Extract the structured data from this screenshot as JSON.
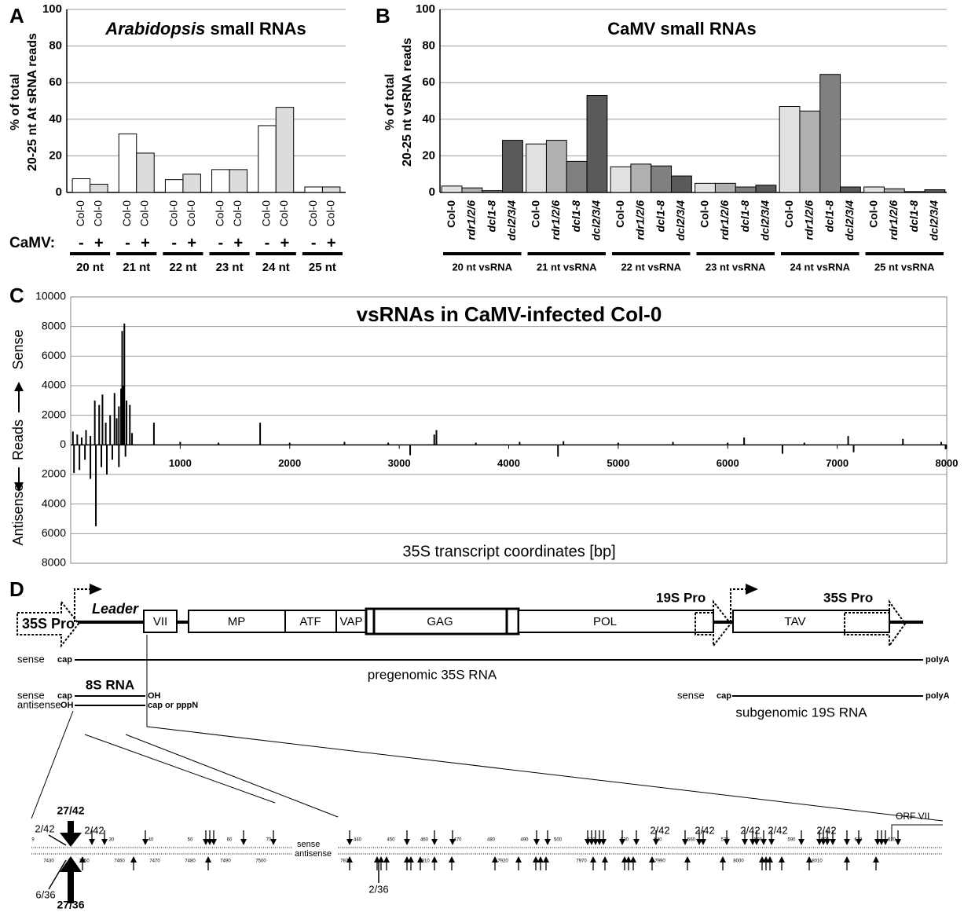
{
  "chart_data": [
    {
      "type": "bar",
      "panel": "A",
      "title_parts": [
        {
          "text": "Arabidopsis",
          "italic": true
        },
        {
          "text": " small RNAs",
          "italic": false
        }
      ],
      "ylabel": [
        "% of total",
        "20-25 nt At sRNA reads"
      ],
      "camv_label": "CaMV:",
      "bar_label": "Col-0",
      "categories": [
        "20 nt",
        "21 nt",
        "22 nt",
        "23 nt",
        "24 nt",
        "25 nt"
      ],
      "series": [
        {
          "name": "-",
          "color": "#ffffff",
          "values": [
            7.5,
            32,
            7,
            12.5,
            36.5,
            3
          ]
        },
        {
          "name": "+",
          "color": "#dcdcdc",
          "values": [
            4.5,
            21.5,
            10,
            12.5,
            46.5,
            3
          ]
        }
      ],
      "ylim": [
        0,
        100
      ],
      "yticks": [
        0,
        20,
        40,
        60,
        80,
        100
      ],
      "grid": true
    },
    {
      "type": "bar",
      "panel": "B",
      "title_parts": [
        {
          "text": "CaMV small RNAs",
          "italic": false
        }
      ],
      "ylabel": [
        "% of total",
        "20-25 nt vsRNA reads"
      ],
      "categories": [
        "20 nt vsRNA",
        "21 nt vsRNA",
        "22 nt vsRNA",
        "23 nt vsRNA",
        "24 nt vsRNA",
        "25 nt vsRNA"
      ],
      "series": [
        {
          "name": "Col-0",
          "italic": false,
          "color": "#e2e2e2",
          "values": [
            3.5,
            26.5,
            14,
            5,
            47,
            3
          ]
        },
        {
          "name": "rdr1/2/6",
          "italic": true,
          "color": "#b0b0b0",
          "values": [
            2.5,
            28.5,
            15.5,
            5,
            44.5,
            2
          ]
        },
        {
          "name": "dcl1-8",
          "italic": true,
          "color": "#808080",
          "values": [
            1,
            17,
            14.5,
            3,
            64.5,
            0.5
          ]
        },
        {
          "name": "dcl2/3/4",
          "italic": true,
          "color": "#5a5a5a",
          "values": [
            28.5,
            53,
            9,
            4,
            3,
            1.5
          ]
        }
      ],
      "ylim": [
        0,
        100
      ],
      "yticks": [
        0,
        20,
        40,
        60,
        80,
        100
      ],
      "grid": true
    },
    {
      "type": "spike",
      "panel": "C",
      "title": "vsRNAs in CaMV-infected Col-0",
      "ylabel": "Reads",
      "xlabel": "35S transcript coordinates [bp]",
      "series": [
        {
          "name": "Sense",
          "color": "#000000",
          "x": [
            20,
            60,
            100,
            140,
            180,
            220,
            260,
            290,
            320,
            360,
            400,
            420,
            440,
            460,
            470,
            480,
            490,
            510,
            540,
            560,
            760,
            1000,
            1350,
            1730,
            2000,
            2500,
            2900,
            3320,
            3340,
            3700,
            4100,
            4500,
            5000,
            5500,
            6000,
            6150,
            6700,
            7100,
            7600,
            7950
          ],
          "values": [
            900,
            700,
            500,
            1000,
            600,
            3000,
            2700,
            3400,
            1500,
            2000,
            3500,
            1800,
            2600,
            3800,
            7700,
            4000,
            8200,
            3000,
            2700,
            800,
            1500,
            200,
            150,
            1500,
            150,
            200,
            150,
            700,
            1000,
            150,
            200,
            250,
            150,
            200,
            150,
            500,
            150,
            600,
            400,
            200
          ]
        },
        {
          "name": "Antisense",
          "color": "#000000",
          "x": [
            30,
            80,
            130,
            180,
            230,
            280,
            330,
            380,
            440,
            500,
            3100,
            4450,
            6500,
            7150,
            7990
          ],
          "values": [
            -1900,
            -1700,
            -1000,
            -2300,
            -5500,
            -1500,
            -2000,
            -1000,
            -1500,
            -800,
            -700,
            -800,
            -600,
            -500,
            -300
          ]
        }
      ],
      "xlim": [
        0,
        8000
      ],
      "xticks": [
        1000,
        2000,
        3000,
        4000,
        5000,
        6000,
        7000,
        8000
      ],
      "ylim": [
        -8000,
        10000
      ],
      "yticks": [
        {
          "value": -8000,
          "label": "8000"
        },
        {
          "value": -6000,
          "label": "6000"
        },
        {
          "value": -4000,
          "label": "4000"
        },
        {
          "value": -2000,
          "label": "2000"
        },
        0,
        2000,
        4000,
        6000,
        8000,
        10000
      ],
      "grid": true
    }
  ],
  "diagram": {
    "panel": "D",
    "promoter_35s": "35S Pro",
    "leader": "Leader",
    "orfs": [
      "VII",
      "MP",
      "ATF",
      "VAP",
      "GAG",
      "POL",
      "TAV"
    ],
    "promoter_19s": "19S Pro",
    "promoter_35s_enh": "35S Pro",
    "sense": "sense",
    "antisense": "antisense",
    "cap": "cap",
    "polyA": "polyA",
    "oh": "OH",
    "pregenomic": "pregenomic 35S RNA",
    "rna_8s": "8S RNA",
    "cap_or_pppn": "cap or pppN",
    "subgenomic": "subgenomic 19S RNA",
    "counts": [
      "27/42",
      "2/42",
      "2/42",
      "6/36",
      "27/36",
      "2/36",
      "2/42",
      "2/42",
      "2/42",
      "2/42",
      "2/42"
    ],
    "orf_vii": "ORF VII",
    "sense_ticks": [
      "9",
      "20",
      "30",
      "40",
      "50",
      "60",
      "70",
      "440",
      "450",
      "460",
      "470",
      "480",
      "490",
      "500",
      "510",
      "530",
      "540",
      "560",
      "570",
      "580",
      "590",
      "600",
      "610",
      "620"
    ],
    "antisense_ticks": [
      "7430",
      "7450",
      "7460",
      "7470",
      "7480",
      "7490",
      "7500",
      "7870",
      "7910",
      "7920",
      "7970",
      "7990",
      "8000",
      "8010"
    ]
  }
}
